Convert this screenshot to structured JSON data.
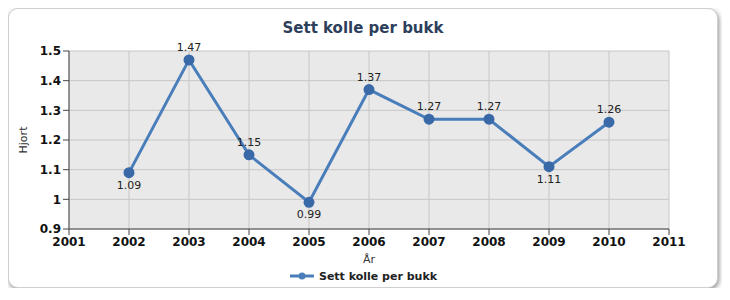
{
  "chart_data": {
    "type": "line",
    "title": "Sett kolle per bukk",
    "xlabel": "År",
    "ylabel": "Hjort",
    "x": [
      2002,
      2003,
      2004,
      2005,
      2006,
      2007,
      2008,
      2009,
      2010
    ],
    "series": [
      {
        "name": "Sett kolle per bukk",
        "color": "#4a7ebb",
        "marker": "circle",
        "values": [
          1.09,
          1.47,
          1.15,
          0.99,
          1.37,
          1.27,
          1.27,
          1.11,
          1.26
        ]
      }
    ],
    "xlim": [
      2001,
      2011
    ],
    "xticks": [
      2001,
      2002,
      2003,
      2004,
      2005,
      2006,
      2007,
      2008,
      2009,
      2010,
      2011
    ],
    "ylim": [
      0.9,
      1.5
    ],
    "yticks": [
      0.9,
      1,
      1.1,
      1.2,
      1.3,
      1.4,
      1.5
    ],
    "grid": true,
    "data_labels": true,
    "legend": "bottom"
  }
}
